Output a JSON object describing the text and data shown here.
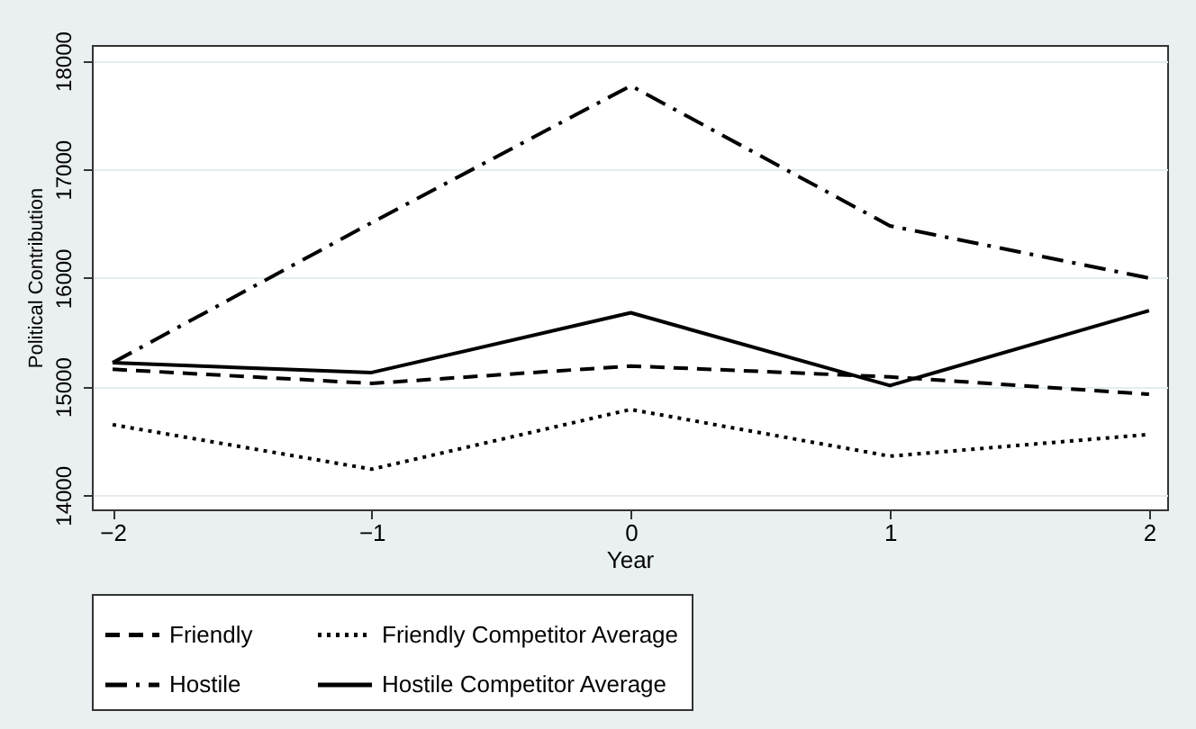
{
  "chart_data": {
    "type": "line",
    "xlabel": "Year",
    "ylabel": "Political Contribution",
    "x": [
      -2,
      -1,
      0,
      1,
      2
    ],
    "xlim": [
      -2.08,
      2.07
    ],
    "xticks": [
      -2,
      -1,
      0,
      1,
      2
    ],
    "ylim": [
      13870,
      18145
    ],
    "yticks": [
      14000,
      15000,
      16000,
      17000,
      18000
    ],
    "grid": "y",
    "legend": "bottom",
    "series": [
      {
        "name": "Friendly",
        "color": "#000000",
        "line_style": "dashed",
        "values": [
          15160,
          15030,
          15190,
          15090,
          14930
        ]
      },
      {
        "name": "Friendly Competitor Average",
        "color": "#000000",
        "line_style": "dotted",
        "values": [
          14650,
          14240,
          14790,
          14360,
          14560
        ]
      },
      {
        "name": "Hostile",
        "color": "#000000",
        "line_style": "dashdot",
        "values": [
          15220,
          16510,
          17770,
          16480,
          16000
        ]
      },
      {
        "name": "Hostile Competitor Average",
        "color": "#000000",
        "line_style": "solid",
        "values": [
          15220,
          15130,
          15680,
          15010,
          15700
        ]
      }
    ]
  }
}
